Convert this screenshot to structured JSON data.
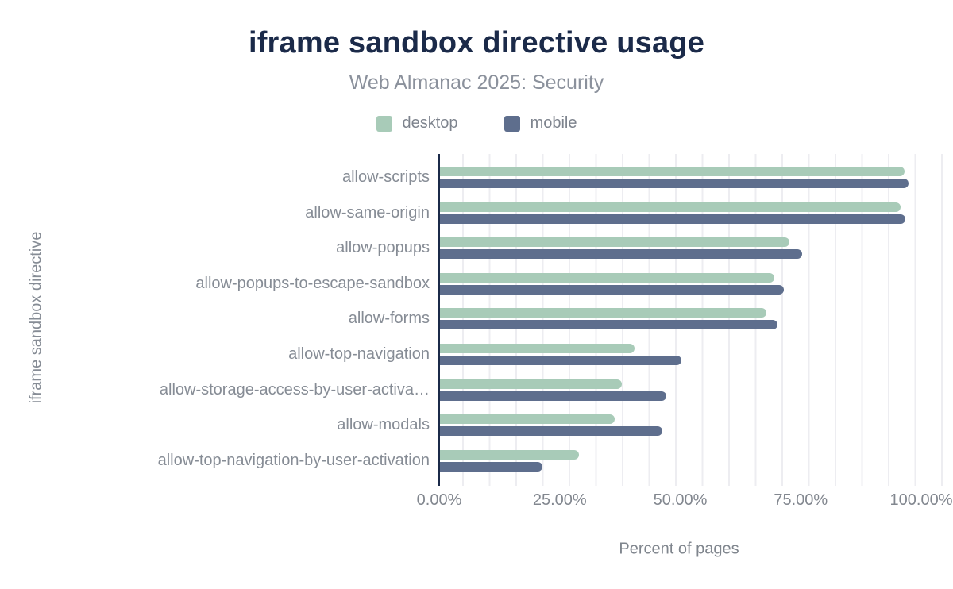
{
  "title": "iframe sandbox directive usage",
  "subtitle": "Web Almanac 2025: Security",
  "legend": {
    "items": [
      {
        "label": "desktop",
        "color": "#a8cbb8"
      },
      {
        "label": "mobile",
        "color": "#5e6e8d"
      }
    ]
  },
  "x_axis": {
    "title": "Percent of pages",
    "ticks": [
      "0.00%",
      "25.00%",
      "50.00%",
      "75.00%",
      "100.00%"
    ]
  },
  "y_axis": {
    "title": "iframe sandbox directive"
  },
  "chart_data": {
    "type": "bar",
    "orientation": "horizontal",
    "title": "iframe sandbox directive usage",
    "subtitle": "Web Almanac 2025: Security",
    "xlabel": "Percent of pages",
    "ylabel": "iframe sandbox directive",
    "xlim": [
      0,
      100
    ],
    "x_tick_labels": [
      "0.00%",
      "25.00%",
      "50.00%",
      "75.00%",
      "100.00%"
    ],
    "grid": "vertical-minor",
    "legend_position": "top",
    "categories": [
      "allow-scripts",
      "allow-same-origin",
      "allow-popups",
      "allow-popups-to-escape-sandbox",
      "allow-forms",
      "allow-top-navigation",
      "allow-storage-access-by-user-activa…",
      "allow-modals",
      "allow-top-navigation-by-user-activation"
    ],
    "series": [
      {
        "name": "desktop",
        "color": "#a8cbb8",
        "values": [
          96.3,
          95.5,
          72.5,
          69.3,
          67.7,
          40.4,
          37.7,
          36.3,
          28.8
        ]
      },
      {
        "name": "mobile",
        "color": "#5e6e8d",
        "values": [
          97.2,
          96.5,
          75.1,
          71.4,
          70.0,
          50.0,
          47.0,
          46.2,
          21.2
        ]
      }
    ]
  },
  "colors": {
    "title_navy": "#1b2a49",
    "axis_line": "#1b2a49",
    "text_gray": "#868c95",
    "gridline": "#ededf1",
    "desktop": "#a8cbb8",
    "mobile": "#5e6e8d",
    "background": "#ffffff"
  }
}
